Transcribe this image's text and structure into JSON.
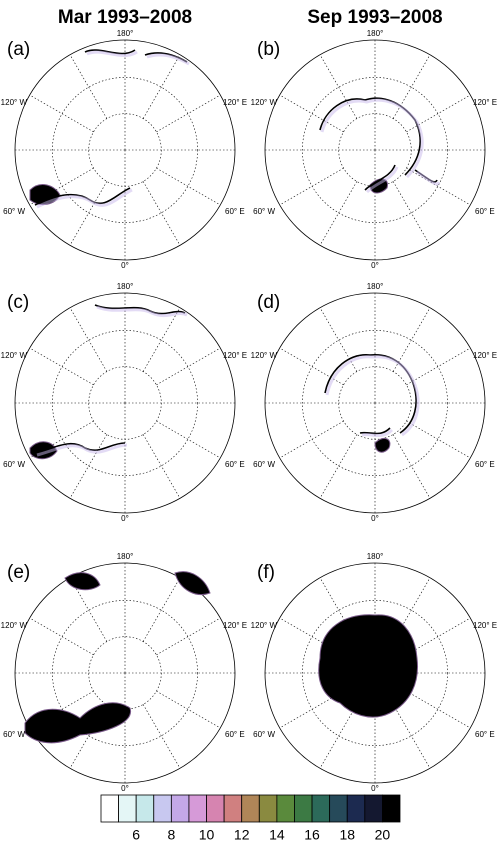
{
  "figure": {
    "column_titles": [
      "Mar 1993–2008",
      "Sep 1993–2008"
    ],
    "panels": [
      "(a)",
      "(b)",
      "(c)",
      "(d)",
      "(e)",
      "(f)"
    ],
    "longitude_labels": {
      "top": "180°",
      "upper_left": "120° W",
      "upper_right": "120° E",
      "lower_left": "60° W",
      "lower_right": "60° E",
      "bottom": "0°"
    },
    "colorbar": {
      "colors": [
        "#ffffff",
        "#e4f6f6",
        "#c6e8ea",
        "#c8c8f0",
        "#c4a8e8",
        "#d69ad8",
        "#d684b0",
        "#d08080",
        "#b08658",
        "#8a8a40",
        "#5a8a3c",
        "#3c7a44",
        "#2c6a5a",
        "#264a5a",
        "#1c2a50",
        "#141830",
        "#000000"
      ],
      "lim": [
        4,
        21
      ],
      "ticks": [
        6,
        8,
        10,
        12,
        14,
        16,
        18,
        20
      ]
    }
  }
}
